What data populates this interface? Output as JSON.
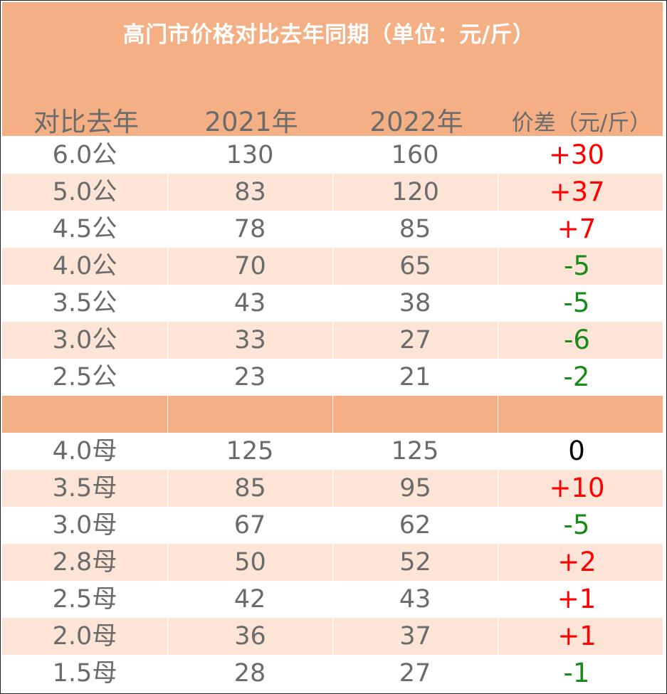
{
  "title": "高门市价格对比去年同期（单位：元/斤）",
  "headers": [
    "对比去年",
    "2021年",
    "2022年",
    "价差（元/斤）"
  ],
  "colors": {
    "header_bg": "#f4b084",
    "alt_row_bg": "#fce4d6",
    "text_gray": "#6b6b6b",
    "increase": "#ff0000",
    "decrease": "#1a8a1a",
    "no_change": "#000000"
  },
  "rows_male": [
    {
      "spec": "6.0公",
      "y2021": "130",
      "y2022": "160",
      "diff": "+30",
      "trend": "pos"
    },
    {
      "spec": "5.0公",
      "y2021": "83",
      "y2022": "120",
      "diff": "+37",
      "trend": "pos"
    },
    {
      "spec": "4.5公",
      "y2021": "78",
      "y2022": "85",
      "diff": "+7",
      "trend": "pos"
    },
    {
      "spec": "4.0公",
      "y2021": "70",
      "y2022": "65",
      "diff": "-5",
      "trend": "neg"
    },
    {
      "spec": "3.5公",
      "y2021": "43",
      "y2022": "38",
      "diff": "-5",
      "trend": "neg"
    },
    {
      "spec": "3.0公",
      "y2021": "33",
      "y2022": "27",
      "diff": "-6",
      "trend": "neg"
    },
    {
      "spec": "2.5公",
      "y2021": "23",
      "y2022": "21",
      "diff": "-2",
      "trend": "neg"
    }
  ],
  "rows_female": [
    {
      "spec": "4.0母",
      "y2021": "125",
      "y2022": "125",
      "diff": "0",
      "trend": "zero"
    },
    {
      "spec": "3.5母",
      "y2021": "85",
      "y2022": "95",
      "diff": "+10",
      "trend": "pos"
    },
    {
      "spec": "3.0母",
      "y2021": "67",
      "y2022": "62",
      "diff": "-5",
      "trend": "neg"
    },
    {
      "spec": "2.8母",
      "y2021": "50",
      "y2022": "52",
      "diff": "+2",
      "trend": "pos"
    },
    {
      "spec": "2.5母",
      "y2021": "42",
      "y2022": "43",
      "diff": "+1",
      "trend": "pos"
    },
    {
      "spec": "2.0母",
      "y2021": "36",
      "y2022": "37",
      "diff": "+1",
      "trend": "pos"
    },
    {
      "spec": "1.5母",
      "y2021": "28",
      "y2022": "27",
      "diff": "-1",
      "trend": "neg"
    }
  ]
}
